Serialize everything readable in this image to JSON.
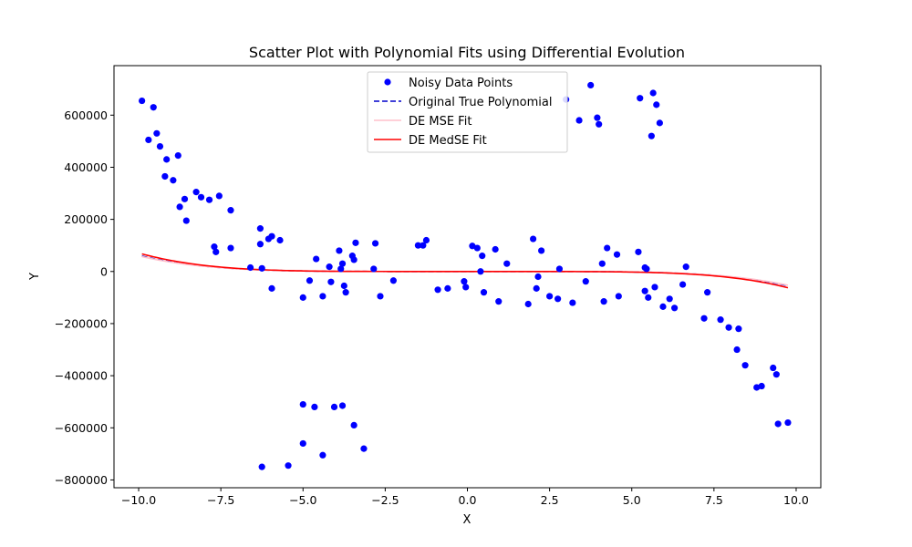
{
  "chart_data": {
    "type": "scatter",
    "title": "Scatter Plot with Polynomial Fits using Differential Evolution",
    "xlabel": "X",
    "ylabel": "Y",
    "xlim": [
      -10.75,
      10.75
    ],
    "ylim": [
      -830000,
      790000
    ],
    "xticks": [
      -10.0,
      -7.5,
      -5.0,
      -2.5,
      0.0,
      2.5,
      5.0,
      7.5,
      10.0
    ],
    "xtick_labels": [
      "−10.0",
      "−7.5",
      "−5.0",
      "−2.5",
      "0.0",
      "2.5",
      "5.0",
      "7.5",
      "10.0"
    ],
    "yticks": [
      -800000,
      -600000,
      -400000,
      -200000,
      0,
      200000,
      400000,
      600000
    ],
    "ytick_labels": [
      "−800000",
      "−600000",
      "−400000",
      "−200000",
      "0",
      "200000",
      "400000",
      "600000"
    ],
    "grid": false,
    "legend_position": "top-center",
    "scatter": {
      "name": "Noisy Data Points",
      "color": "#0000ff",
      "points": [
        [
          -9.9,
          655000
        ],
        [
          -9.7,
          505000
        ],
        [
          -9.55,
          630000
        ],
        [
          -9.45,
          530000
        ],
        [
          -9.35,
          480000
        ],
        [
          -9.2,
          365000
        ],
        [
          -9.15,
          430000
        ],
        [
          -8.95,
          350000
        ],
        [
          -8.8,
          445000
        ],
        [
          -8.75,
          248000
        ],
        [
          -8.55,
          195000
        ],
        [
          -8.6,
          278000
        ],
        [
          -8.25,
          305000
        ],
        [
          -8.1,
          285000
        ],
        [
          -7.85,
          275000
        ],
        [
          -7.7,
          95000
        ],
        [
          -7.65,
          75000
        ],
        [
          -7.55,
          290000
        ],
        [
          -7.2,
          235000
        ],
        [
          -7.2,
          90000
        ],
        [
          -6.6,
          15000
        ],
        [
          -6.3,
          165000
        ],
        [
          -6.3,
          105000
        ],
        [
          -6.25,
          12000
        ],
        [
          -6.05,
          125000
        ],
        [
          -5.95,
          135000
        ],
        [
          -5.95,
          -65000
        ],
        [
          -5.7,
          120000
        ],
        [
          -5.0,
          -100000
        ],
        [
          -4.8,
          -35000
        ],
        [
          -4.6,
          48000
        ],
        [
          -4.4,
          -95000
        ],
        [
          -4.2,
          18000
        ],
        [
          -4.15,
          -40000
        ],
        [
          -3.9,
          80000
        ],
        [
          -3.85,
          10000
        ],
        [
          -3.8,
          30000
        ],
        [
          -3.75,
          -55000
        ],
        [
          -3.7,
          -80000
        ],
        [
          -3.5,
          60000
        ],
        [
          -3.45,
          45000
        ],
        [
          -3.4,
          110000
        ],
        [
          -2.85,
          10000
        ],
        [
          -2.8,
          108000
        ],
        [
          -2.65,
          -95000
        ],
        [
          -2.25,
          -35000
        ],
        [
          -1.5,
          100000
        ],
        [
          -1.35,
          100000
        ],
        [
          -1.25,
          120000
        ],
        [
          -0.9,
          -70000
        ],
        [
          -0.6,
          -65000
        ],
        [
          -0.1,
          -38000
        ],
        [
          -0.05,
          -60000
        ],
        [
          0.15,
          98000
        ],
        [
          0.3,
          90000
        ],
        [
          0.4,
          0
        ],
        [
          0.45,
          60000
        ],
        [
          0.5,
          -80000
        ],
        [
          0.85,
          85000
        ],
        [
          0.95,
          -115000
        ],
        [
          1.2,
          30000
        ],
        [
          1.85,
          -125000
        ],
        [
          2.0,
          125000
        ],
        [
          2.1,
          -65000
        ],
        [
          2.15,
          -20000
        ],
        [
          2.25,
          80000
        ],
        [
          2.5,
          -95000
        ],
        [
          2.75,
          -105000
        ],
        [
          2.8,
          10000
        ],
        [
          3.2,
          -120000
        ],
        [
          3.6,
          -38000
        ],
        [
          4.1,
          30000
        ],
        [
          4.15,
          -115000
        ],
        [
          4.25,
          90000
        ],
        [
          4.55,
          65000
        ],
        [
          4.6,
          -95000
        ],
        [
          5.2,
          75000
        ],
        [
          5.4,
          15000
        ],
        [
          5.45,
          10000
        ],
        [
          5.4,
          -75000
        ],
        [
          5.5,
          -100000
        ],
        [
          5.7,
          -60000
        ],
        [
          5.95,
          -135000
        ],
        [
          6.15,
          -105000
        ],
        [
          6.3,
          -140000
        ],
        [
          6.55,
          -50000
        ],
        [
          6.65,
          18000
        ],
        [
          7.2,
          -180000
        ],
        [
          7.3,
          -80000
        ],
        [
          7.7,
          -185000
        ],
        [
          7.95,
          -215000
        ],
        [
          8.25,
          -220000
        ],
        [
          8.2,
          -300000
        ],
        [
          8.45,
          -360000
        ],
        [
          8.8,
          -445000
        ],
        [
          8.95,
          -440000
        ],
        [
          9.3,
          -370000
        ],
        [
          9.4,
          -395000
        ],
        [
          9.45,
          -585000
        ],
        [
          9.75,
          -580000
        ],
        [
          -5.0,
          -510000
        ],
        [
          -5.0,
          -660000
        ],
        [
          -4.65,
          -520000
        ],
        [
          -4.4,
          -705000
        ],
        [
          -4.05,
          -520000
        ],
        [
          -3.8,
          -515000
        ],
        [
          -3.45,
          -590000
        ],
        [
          -3.15,
          -680000
        ],
        [
          -6.25,
          -750000
        ],
        [
          -5.45,
          -745000
        ],
        [
          3.0,
          660000
        ],
        [
          3.4,
          580000
        ],
        [
          3.75,
          715000
        ],
        [
          3.95,
          590000
        ],
        [
          4.0,
          565000
        ],
        [
          5.25,
          665000
        ],
        [
          5.6,
          520000
        ],
        [
          5.65,
          685000
        ],
        [
          5.75,
          640000
        ],
        [
          5.85,
          570000
        ]
      ]
    },
    "lines": [
      {
        "name": "Original True Polynomial",
        "color": "#0000cc",
        "style": "dashed",
        "x_range": [
          -9.9,
          9.75
        ],
        "coefficients": [
          0,
          0,
          0,
          0,
          0,
          -0.62
        ]
      },
      {
        "name": "DE MSE Fit",
        "color": "#ffc0cb",
        "style": "solid",
        "x_range": [
          -9.9,
          9.75
        ],
        "coefficients": [
          0,
          0,
          0,
          0,
          0,
          -0.6
        ]
      },
      {
        "name": "DE MedSE Fit",
        "color": "#ff0000",
        "style": "solid",
        "x_range": [
          -9.9,
          9.75
        ],
        "coefficients": [
          0,
          0,
          0,
          0,
          0,
          -0.71
        ]
      }
    ]
  }
}
